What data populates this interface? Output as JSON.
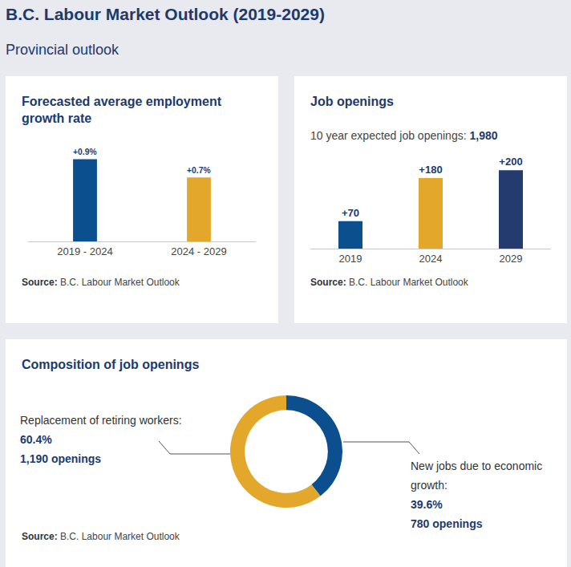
{
  "title": "B.C. Labour Market Outlook (2019-2029)",
  "subtitle": "Provincial outlook",
  "chart_data": [
    {
      "type": "bar",
      "title": "Forecasted average employment growth rate",
      "categories": [
        "2019 - 2024",
        "2024 - 2029"
      ],
      "values": [
        0.9,
        0.7
      ],
      "value_labels": [
        "+0.9%",
        "+0.7%"
      ],
      "colors": [
        "#0b4f8f",
        "#e3a82b"
      ],
      "data_labels": true,
      "tick_labels": "x",
      "grid": false,
      "source_label": "Source:",
      "source": "B.C. Labour Market Outlook"
    },
    {
      "type": "bar",
      "title": "Job openings",
      "total_label": "10 year expected job openings:",
      "total": {
        "value": 1980,
        "label": "1,980"
      },
      "categories": [
        "2019",
        "2024",
        "2029"
      ],
      "values": [
        70,
        180,
        200
      ],
      "value_labels": [
        "+70",
        "+180",
        "+200"
      ],
      "colors": [
        "#0b4f8f",
        "#e3a82b",
        "#233b6e"
      ],
      "data_labels": true,
      "tick_labels": "x",
      "grid": false,
      "source_label": "Source:",
      "source": "B.C. Labour Market Outlook"
    },
    {
      "type": "donut",
      "title": "Composition of job openings",
      "categories": [
        "New jobs due to economic growth:",
        "Replacement of retiring workers:"
      ],
      "values": [
        39.6,
        60.4
      ],
      "value_labels": [
        "39.6%",
        "60.4%"
      ],
      "openings": [
        780,
        1190
      ],
      "openings_labels": [
        "780 openings",
        "1,190 openings"
      ],
      "colors": [
        "#0b4f8f",
        "#e3a82b"
      ],
      "data_labels": true,
      "source_label": "Source:",
      "source": "B.C. Labour Market Outlook"
    }
  ]
}
